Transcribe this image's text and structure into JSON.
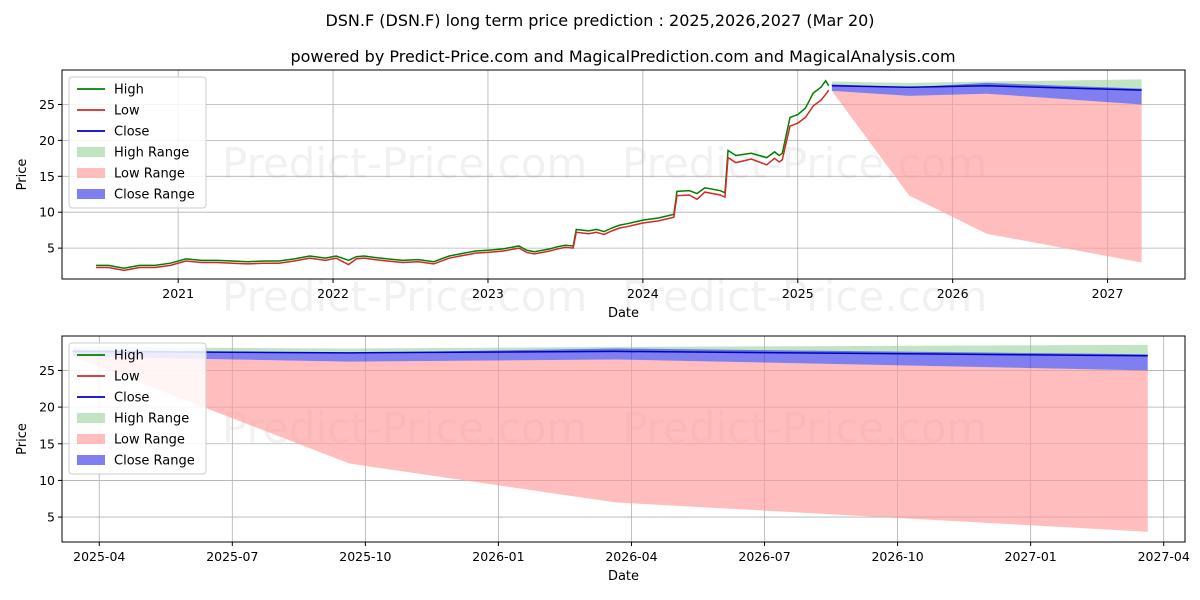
{
  "page": {
    "title": "DSN.F (DSN.F) long term price prediction : 2025,2026,2027 (Mar 20)",
    "subtitle": "powered by Predict-Price.com and MagicalPrediction.com and MagicalAnalysis.com",
    "watermark": "Predict-Price.com"
  },
  "colors": {
    "high": "#008000",
    "low": "#d62728",
    "close": "#0000cc",
    "high_range": "#8fce8f",
    "low_range": "#ff9a9a",
    "close_range": "#3a3ae6"
  },
  "legend": [
    "High",
    "Low",
    "Close",
    "High Range",
    "Low Range",
    "Close Range"
  ],
  "chart_data": [
    {
      "type": "line",
      "panel": "top",
      "xlabel": "Date",
      "ylabel": "Price",
      "xlim": [
        2020.25,
        2027.5
      ],
      "ylim": [
        0.7,
        29.8
      ],
      "x_ticks": [
        2021,
        2022,
        2023,
        2024,
        2025,
        2026,
        2027
      ],
      "x_tick_labels": [
        "2021",
        "2022",
        "2023",
        "2024",
        "2025",
        "2026",
        "2027"
      ],
      "y_ticks": [
        5,
        10,
        15,
        20,
        25
      ],
      "grid": true,
      "legend_position": "top-left",
      "history": {
        "x": [
          2020.47,
          2020.55,
          2020.65,
          2020.75,
          2020.85,
          2020.95,
          2021.05,
          2021.15,
          2021.25,
          2021.35,
          2021.45,
          2021.55,
          2021.65,
          2021.75,
          2021.85,
          2021.95,
          2022.02,
          2022.1,
          2022.15,
          2022.2,
          2022.27,
          2022.35,
          2022.45,
          2022.55,
          2022.65,
          2022.75,
          2022.82,
          2022.87,
          2022.92,
          2023.0,
          2023.1,
          2023.2,
          2023.25,
          2023.3,
          2023.4,
          2023.45,
          2023.5,
          2023.55,
          2023.57,
          2023.65,
          2023.7,
          2023.75,
          2023.8,
          2023.85,
          2023.9,
          2024.0,
          2024.1,
          2024.2,
          2024.22,
          2024.3,
          2024.35,
          2024.4,
          2024.5,
          2024.53,
          2024.55,
          2024.6,
          2024.7,
          2024.8,
          2024.85,
          2024.88,
          2024.9,
          2024.95,
          2025.0,
          2025.05,
          2025.1,
          2025.15,
          2025.18,
          2025.2
        ],
        "high": [
          2.6,
          2.6,
          2.2,
          2.6,
          2.6,
          2.9,
          3.5,
          3.3,
          3.3,
          3.2,
          3.1,
          3.2,
          3.2,
          3.5,
          3.9,
          3.6,
          3.9,
          3.3,
          3.8,
          3.9,
          3.7,
          3.5,
          3.3,
          3.4,
          3.1,
          3.9,
          4.2,
          4.4,
          4.6,
          4.7,
          4.9,
          5.3,
          4.7,
          4.5,
          4.9,
          5.2,
          5.4,
          5.3,
          7.6,
          7.4,
          7.6,
          7.3,
          7.8,
          8.2,
          8.4,
          8.9,
          9.2,
          9.7,
          12.9,
          13.0,
          12.6,
          13.4,
          13.0,
          12.7,
          18.6,
          17.9,
          18.2,
          17.6,
          18.4,
          17.9,
          18.2,
          23.2,
          23.6,
          24.5,
          26.6,
          27.4,
          28.3,
          27.6
        ],
        "low": [
          2.3,
          2.3,
          1.9,
          2.3,
          2.3,
          2.6,
          3.2,
          3.0,
          3.0,
          2.9,
          2.8,
          2.9,
          2.9,
          3.2,
          3.6,
          3.3,
          3.6,
          2.7,
          3.5,
          3.6,
          3.4,
          3.2,
          3.0,
          3.1,
          2.8,
          3.6,
          3.9,
          4.1,
          4.3,
          4.4,
          4.6,
          5.0,
          4.4,
          4.2,
          4.6,
          4.9,
          5.1,
          5.0,
          7.2,
          7.0,
          7.2,
          6.9,
          7.4,
          7.8,
          8.0,
          8.5,
          8.8,
          9.3,
          12.3,
          12.4,
          11.8,
          12.8,
          12.4,
          12.1,
          17.6,
          16.9,
          17.4,
          16.6,
          17.5,
          17.0,
          17.3,
          22.0,
          22.4,
          23.2,
          24.8,
          25.6,
          26.4,
          27.0
        ]
      },
      "forecast": {
        "x": [
          2025.22,
          2025.72,
          2026.22,
          2027.22
        ],
        "close": [
          27.6,
          27.4,
          27.6,
          27.0
        ],
        "high_range_upper": [
          28.2,
          28.0,
          28.2,
          28.5
        ],
        "close_range_upper": [
          27.8,
          27.4,
          28.0,
          27.2
        ],
        "close_range_lower": [
          26.9,
          26.2,
          26.5,
          25.0
        ],
        "low_range_upper": [
          26.9,
          26.2,
          26.5,
          25.0
        ],
        "low_range_lower": [
          26.9,
          12.3,
          7.0,
          3.0
        ]
      }
    },
    {
      "type": "area",
      "panel": "bottom",
      "xlabel": "Date",
      "ylabel": "Price",
      "xlim": [
        2025.18,
        2027.29
      ],
      "ylim": [
        1.6,
        29.7
      ],
      "x_ticks": [
        2025.25,
        2025.5,
        2025.75,
        2026.0,
        2026.25,
        2026.5,
        2026.75,
        2027.0,
        2027.25
      ],
      "x_tick_labels": [
        "2025-04",
        "2025-07",
        "2025-10",
        "2026-01",
        "2026-04",
        "2026-07",
        "2026-10",
        "2027-01",
        "2027-04"
      ],
      "y_ticks": [
        5,
        10,
        15,
        20,
        25
      ],
      "grid": true,
      "legend_position": "top-left",
      "forecast": {
        "x": [
          2025.2,
          2025.72,
          2026.22,
          2027.22
        ],
        "close": [
          27.6,
          27.4,
          27.6,
          27.0
        ],
        "high_range_upper": [
          28.2,
          28.0,
          28.2,
          28.5
        ],
        "close_range_upper": [
          27.8,
          27.4,
          28.0,
          27.2
        ],
        "close_range_lower": [
          26.9,
          26.2,
          26.5,
          25.0
        ],
        "low_range_upper": [
          26.9,
          26.2,
          26.5,
          25.0
        ],
        "low_range_lower": [
          26.9,
          12.3,
          7.0,
          3.0
        ]
      }
    }
  ]
}
